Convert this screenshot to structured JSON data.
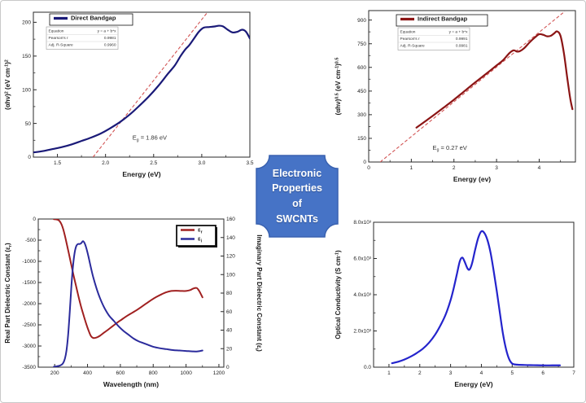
{
  "badge": {
    "lines": [
      "Electronic",
      "Properties",
      "of",
      "SWCNTs"
    ],
    "fill": "#4673C6",
    "border": "#3A62B0",
    "text_color": "#FFFFFF"
  },
  "chart_data": [
    {
      "id": "direct-bandgap",
      "type": "line",
      "xlabel": "Energy (eV)",
      "ylabel_segments": [
        {
          "t": "(αhν)"
        },
        {
          "t": "2",
          "s": 1
        },
        {
          "t": " (eV cm"
        },
        {
          "t": "-1",
          "s": 1
        },
        {
          "t": ")"
        },
        {
          "t": "2",
          "s": 1
        }
      ],
      "xlim": [
        1.25,
        3.5
      ],
      "ylim": [
        0,
        215
      ],
      "xticks": [
        {
          "v": 1.5,
          "l": "1.5"
        },
        {
          "v": 2.0,
          "l": "2.0"
        },
        {
          "v": 2.5,
          "l": "2.5"
        },
        {
          "v": 3.0,
          "l": "3.0"
        },
        {
          "v": 3.5,
          "l": "3.5"
        }
      ],
      "yticks": [
        {
          "v": 0,
          "l": "0"
        },
        {
          "v": 50,
          "l": "50"
        },
        {
          "v": 100,
          "l": "100"
        },
        {
          "v": 150,
          "l": "150"
        },
        {
          "v": 200,
          "l": "200"
        }
      ],
      "legend": {
        "entries": [
          {
            "label": "Direct Bandgap",
            "color": "#1A1A78",
            "width": 2.6
          }
        ]
      },
      "stats_box": {
        "rows": [
          [
            "Equation",
            "y = a + b*x"
          ],
          [
            "Pearson's r",
            "0.9981"
          ],
          [
            "Adj. R-Square",
            "0.9960"
          ]
        ]
      },
      "annotation": {
        "segments": [
          {
            "t": "E"
          },
          {
            "t": "g",
            "s": -1
          },
          {
            "t": " = 1.86 eV"
          }
        ],
        "x": 2.28,
        "y": 26
      },
      "fit_line": {
        "x1": 1.87,
        "y1": 0,
        "x2": 3.06,
        "y2": 215,
        "color": "#D25555"
      },
      "series": [
        {
          "name": "Direct Bandgap",
          "color": "#1A1A78",
          "width": 2.2,
          "x": [
            1.25,
            1.35,
            1.45,
            1.55,
            1.65,
            1.75,
            1.85,
            1.95,
            2.05,
            2.15,
            2.25,
            2.35,
            2.45,
            2.55,
            2.65,
            2.72,
            2.78,
            2.83,
            2.87,
            2.92,
            2.97,
            3.02,
            3.08,
            3.14,
            3.18,
            3.22,
            3.27,
            3.32,
            3.37,
            3.42,
            3.46,
            3.5
          ],
          "y": [
            7,
            9,
            12,
            15,
            19,
            24,
            29,
            35,
            43,
            52,
            63,
            76,
            90,
            106,
            124,
            136,
            150,
            160,
            166,
            176,
            186,
            192,
            193,
            194,
            195,
            194,
            189,
            185,
            186,
            189,
            186,
            176
          ]
        }
      ]
    },
    {
      "id": "indirect-bandgap",
      "type": "line",
      "xlabel": "Energy (ev)",
      "ylabel_segments": [
        {
          "t": "(αhν)"
        },
        {
          "t": "0.5",
          "s": 1
        },
        {
          "t": " (eV cm"
        },
        {
          "t": "-1",
          "s": 1
        },
        {
          "t": ")"
        },
        {
          "t": "0.5",
          "s": 1
        }
      ],
      "xlim": [
        0,
        4.85
      ],
      "ylim": [
        0,
        960
      ],
      "xticks": [
        {
          "v": 0,
          "l": "0"
        },
        {
          "v": 1,
          "l": "1"
        },
        {
          "v": 2,
          "l": "2"
        },
        {
          "v": 3,
          "l": "3"
        },
        {
          "v": 4,
          "l": "4"
        }
      ],
      "yticks": [
        {
          "v": 0,
          "l": "0"
        },
        {
          "v": 150,
          "l": "150"
        },
        {
          "v": 300,
          "l": "300"
        },
        {
          "v": 450,
          "l": "450"
        },
        {
          "v": 600,
          "l": "600"
        },
        {
          "v": 750,
          "l": "750"
        },
        {
          "v": 900,
          "l": "900"
        }
      ],
      "legend": {
        "entries": [
          {
            "label": "Indirect Bandgap",
            "color": "#8B1515",
            "width": 2.6
          }
        ]
      },
      "stats_box": {
        "rows": [
          [
            "Equation",
            "y = a + b*x"
          ],
          [
            "Pearson's r",
            "0.9991"
          ],
          [
            "Adj. R-Square",
            "0.9981"
          ]
        ]
      },
      "annotation": {
        "segments": [
          {
            "t": "E"
          },
          {
            "t": "g",
            "s": -1
          },
          {
            "t": " = 0.27 eV"
          }
        ],
        "x": 1.5,
        "y": 78
      },
      "fit_line": {
        "x1": 0.27,
        "y1": 0,
        "x2": 4.6,
        "y2": 955,
        "color": "#D25555"
      },
      "series": [
        {
          "name": "Indirect Bandgap",
          "color": "#8B1515",
          "width": 2.2,
          "x": [
            1.12,
            1.3,
            1.5,
            1.75,
            2.0,
            2.25,
            2.5,
            2.75,
            3.0,
            3.15,
            3.3,
            3.4,
            3.48,
            3.55,
            3.65,
            3.78,
            3.9,
            4.0,
            4.1,
            4.18,
            4.27,
            4.35,
            4.42,
            4.5,
            4.58,
            4.66,
            4.73,
            4.78
          ],
          "y": [
            218,
            253,
            292,
            343,
            395,
            450,
            505,
            558,
            612,
            645,
            690,
            708,
            700,
            703,
            722,
            760,
            790,
            810,
            806,
            797,
            800,
            815,
            828,
            800,
            690,
            530,
            400,
            335
          ]
        }
      ]
    },
    {
      "id": "dielectric-constants",
      "type": "line",
      "xlabel": "Wavelength (nm)",
      "ylabel_segments": [
        {
          "t": "Real Part Dielectric Constant (ε"
        },
        {
          "t": "r",
          "s": -1
        },
        {
          "t": ")"
        }
      ],
      "y2label_segments": [
        {
          "t": "Imaginary Part Dielectric Constant (ε"
        },
        {
          "t": "i",
          "s": -1
        },
        {
          "t": ")"
        }
      ],
      "xlim": [
        100,
        1230
      ],
      "ylim": [
        -3500,
        0
      ],
      "xticks": [
        {
          "v": 200,
          "l": "200"
        },
        {
          "v": 400,
          "l": "400"
        },
        {
          "v": 600,
          "l": "600"
        },
        {
          "v": 800,
          "l": "800"
        },
        {
          "v": 1000,
          "l": "1000"
        },
        {
          "v": 1200,
          "l": "1200"
        }
      ],
      "yticks": [
        {
          "v": 0,
          "l": "0"
        },
        {
          "v": -500,
          "l": "-500"
        },
        {
          "v": -1000,
          "l": "-1000"
        },
        {
          "v": -1500,
          "l": "-1500"
        },
        {
          "v": -2000,
          "l": "-2000"
        },
        {
          "v": -2500,
          "l": "-2500"
        },
        {
          "v": -3000,
          "l": "-3000"
        },
        {
          "v": -3500,
          "l": "-3500"
        }
      ],
      "y2": {
        "lim": [
          0,
          160
        ],
        "ticks": [
          {
            "v": 0,
            "l": "0"
          },
          {
            "v": 20,
            "l": "20"
          },
          {
            "v": 40,
            "l": "40"
          },
          {
            "v": 60,
            "l": "60"
          },
          {
            "v": 80,
            "l": "80"
          },
          {
            "v": 100,
            "l": "100"
          },
          {
            "v": 120,
            "l": "120"
          },
          {
            "v": 140,
            "l": "140"
          },
          {
            "v": 160,
            "l": "160"
          }
        ]
      },
      "legend": {
        "entries": [
          {
            "label": [
              {
                "t": "ε"
              },
              {
                "t": "r",
                "s": -1
              }
            ],
            "color": "#A02020",
            "width": 2
          },
          {
            "label": [
              {
                "t": "ε"
              },
              {
                "t": "i",
                "s": -1
              }
            ],
            "color": "#2B2B9C",
            "width": 2
          }
        ]
      },
      "series": [
        {
          "name": "real-part",
          "color": "#A02020",
          "width": 2,
          "axis": "y",
          "x": [
            195,
            210,
            222,
            232,
            242,
            252,
            262,
            272,
            285,
            300,
            315,
            330,
            345,
            360,
            375,
            390,
            405,
            420,
            435,
            455,
            475,
            495,
            520,
            550,
            580,
            610,
            640,
            670,
            700,
            730,
            760,
            790,
            820,
            850,
            880,
            910,
            940,
            970,
            1000,
            1025,
            1045,
            1065,
            1080,
            1100
          ],
          "y": [
            -5,
            -10,
            -25,
            -60,
            -130,
            -240,
            -390,
            -560,
            -790,
            -1060,
            -1330,
            -1580,
            -1830,
            -2060,
            -2260,
            -2450,
            -2620,
            -2760,
            -2810,
            -2800,
            -2760,
            -2700,
            -2630,
            -2540,
            -2450,
            -2370,
            -2290,
            -2220,
            -2150,
            -2070,
            -1990,
            -1910,
            -1840,
            -1780,
            -1730,
            -1700,
            -1695,
            -1700,
            -1700,
            -1680,
            -1640,
            -1630,
            -1700,
            -1850
          ]
        },
        {
          "name": "imaginary-part",
          "color": "#2B2B9C",
          "width": 2,
          "axis": "y2",
          "x": [
            195,
            215,
            235,
            250,
            262,
            272,
            282,
            292,
            302,
            312,
            322,
            332,
            342,
            352,
            362,
            372,
            382,
            392,
            405,
            420,
            435,
            455,
            475,
            500,
            530,
            560,
            590,
            620,
            650,
            680,
            710,
            740,
            770,
            800,
            840,
            880,
            920,
            960,
            1000,
            1040,
            1070,
            1100
          ],
          "y": [
            0.5,
            1,
            2,
            4,
            9,
            18,
            35,
            60,
            88,
            110,
            124,
            131,
            133,
            133,
            134,
            136,
            134,
            129,
            120,
            108,
            97,
            85,
            75,
            65,
            56,
            50,
            44,
            39,
            35,
            31,
            28,
            26,
            24,
            22,
            20.5,
            19.5,
            18.5,
            18,
            17.5,
            17,
            17,
            18
          ]
        }
      ]
    },
    {
      "id": "optical-conductivity",
      "type": "line",
      "xlabel": "Energy (eV)",
      "ylabel_segments": [
        {
          "t": "Optical Conductivity (S cm"
        },
        {
          "t": "-1",
          "s": 1
        },
        {
          "t": ")"
        }
      ],
      "xlim": [
        0.5,
        7
      ],
      "ylim": [
        0,
        8
      ],
      "xticks": [
        {
          "v": 1,
          "l": "1"
        },
        {
          "v": 2,
          "l": "2"
        },
        {
          "v": 3,
          "l": "3"
        },
        {
          "v": 4,
          "l": "4"
        },
        {
          "v": 5,
          "l": "5"
        },
        {
          "v": 6,
          "l": "6"
        },
        {
          "v": 7,
          "l": "7"
        }
      ],
      "yticks": [
        {
          "v": 0,
          "l": "0.0"
        },
        {
          "v": 2,
          "l": "2.0x10³"
        },
        {
          "v": 4,
          "l": "4.0x10³"
        },
        {
          "v": 6,
          "l": "6.0x10³"
        },
        {
          "v": 8,
          "l": "8.0x10³"
        }
      ],
      "series": [
        {
          "name": "optical-conductivity",
          "color": "#2424CC",
          "width": 2.2,
          "x": [
            1.1,
            1.3,
            1.5,
            1.7,
            1.9,
            2.1,
            2.3,
            2.5,
            2.7,
            2.85,
            3.0,
            3.1,
            3.2,
            3.3,
            3.38,
            3.45,
            3.55,
            3.62,
            3.7,
            3.8,
            3.9,
            4.0,
            4.1,
            4.2,
            4.3,
            4.4,
            4.5,
            4.6,
            4.7,
            4.8,
            4.9,
            5.0,
            5.15,
            5.4,
            5.7,
            6.0,
            6.3,
            6.55
          ],
          "y": [
            0.22,
            0.3,
            0.42,
            0.58,
            0.78,
            1.02,
            1.35,
            1.8,
            2.4,
            2.95,
            3.7,
            4.35,
            5.1,
            5.85,
            6.05,
            5.85,
            5.45,
            5.4,
            5.75,
            6.5,
            7.15,
            7.5,
            7.4,
            7.0,
            6.3,
            5.3,
            4.2,
            3.0,
            1.85,
            1.0,
            0.45,
            0.2,
            0.14,
            0.12,
            0.11,
            0.1,
            0.1,
            0.1
          ]
        }
      ]
    }
  ]
}
